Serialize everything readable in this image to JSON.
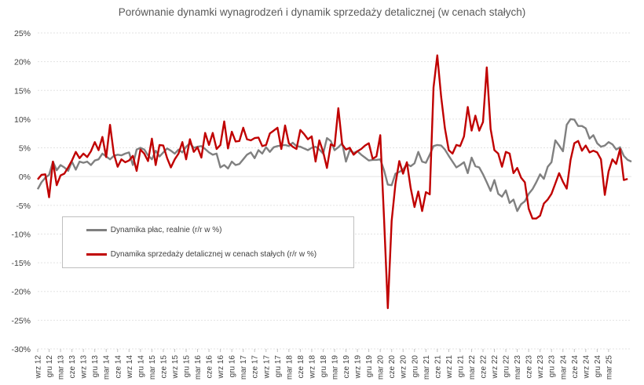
{
  "chart_data": {
    "type": "line",
    "title": "Porównanie dynamki wynagrodzeń i dynamik sprzedaży detalicznej (w cenach stałych)",
    "xlabel": "",
    "ylabel": "",
    "ylim": [
      -30,
      25
    ],
    "y_ticks": [
      "25%",
      "20%",
      "15%",
      "10%",
      "5%",
      "0%",
      "-5%",
      "-10%",
      "-15%",
      "-20%",
      "-25%",
      "-30%"
    ],
    "y_tick_values": [
      25,
      20,
      15,
      10,
      5,
      0,
      -5,
      -10,
      -15,
      -20,
      -25,
      -30
    ],
    "grid": true,
    "legend_position": "lower-left",
    "start": "2012-09",
    "end": "2025-03",
    "x_tick_labels": [
      "wrz 12",
      "gru 12",
      "mar 13",
      "cze 13",
      "wrz 13",
      "gru 13",
      "mar 14",
      "cze 14",
      "wrz 14",
      "gru 14",
      "mar 15",
      "cze 15",
      "wrz 15",
      "gru 15",
      "mar 16",
      "cze 16",
      "wrz 16",
      "gru 16",
      "mar 17",
      "cze 17",
      "wrz 17",
      "gru 17",
      "mar 18",
      "cze 18",
      "wrz 18",
      "gru 18",
      "mar 19",
      "cze 19",
      "wrz 19",
      "gru 19",
      "mar 20",
      "cze 20",
      "wrz 20",
      "gru 20",
      "mar 21",
      "cze 21",
      "wrz 21",
      "gru 21",
      "mar 22",
      "cze 22",
      "wrz 22",
      "gru 22",
      "mar 23",
      "cze 23",
      "wrz 23",
      "gru 23",
      "mar 24",
      "cze 24",
      "wrz 24",
      "gru 24",
      "mar 25"
    ],
    "series": [
      {
        "name": "Dynamika płac, realnie (r/r w %)",
        "color": "#808080",
        "values": [
          -2.2,
          -1.0,
          -0.2,
          0.3,
          2.6,
          1.1,
          2.0,
          1.6,
          1.0,
          2.6,
          1.2,
          2.6,
          2.4,
          2.6,
          2.0,
          2.8,
          3.0,
          4.0,
          3.5,
          3.0,
          3.6,
          3.8,
          3.7,
          4.0,
          4.2,
          2.0,
          4.7,
          5.0,
          4.7,
          3.7,
          3.0,
          4.5,
          3.5,
          4.2,
          4.9,
          4.5,
          4.0,
          4.7,
          4.2,
          5.2,
          5.8,
          5.0,
          5.2,
          5.3,
          4.8,
          4.2,
          3.8,
          4.0,
          1.6,
          2.0,
          1.4,
          2.6,
          2.0,
          2.2,
          3.0,
          3.8,
          4.2,
          3.2,
          4.6,
          4.0,
          5.1,
          4.3,
          5.1,
          5.3,
          5.4,
          5.5,
          5.3,
          5.9,
          5.3,
          5.2,
          4.9,
          4.6,
          5.0,
          5.2,
          4.7,
          4.0,
          6.7,
          6.2,
          4.6,
          5.1,
          5.8,
          2.6,
          4.6,
          4.1,
          4.4,
          3.8,
          3.3,
          2.8,
          2.9,
          2.9,
          3.0,
          1.1,
          -1.4,
          -1.5,
          0.5,
          0.8,
          1.2,
          2.2,
          1.8,
          2.3,
          4.3,
          2.6,
          2.4,
          3.8,
          5.3,
          5.5,
          5.4,
          4.7,
          3.6,
          2.6,
          1.6,
          2.0,
          2.5,
          0.6,
          3.3,
          1.8,
          1.6,
          0.4,
          -1.0,
          -2.5,
          -0.6,
          -3.0,
          -3.5,
          -2.4,
          -4.6,
          -4.0,
          -6.0,
          -4.8,
          -4.3,
          -3.0,
          -2.2,
          -1.0,
          0.4,
          -0.4,
          1.7,
          2.5,
          6.3,
          5.4,
          4.4,
          9.0,
          10.0,
          9.9,
          8.8,
          8.8,
          8.4,
          6.6,
          7.2,
          5.8,
          5.2,
          5.4,
          6.0,
          5.6,
          4.7,
          5.1,
          3.6,
          2.9,
          2.6
        ]
      },
      {
        "name": "Dynamika sprzedaży detalicznej w cenach stałych (r/r w %)",
        "color": "#c00000",
        "values": [
          -0.5,
          0.3,
          0.4,
          -3.6,
          2.6,
          -1.5,
          0.2,
          0.5,
          1.6,
          2.8,
          4.3,
          3.2,
          4.0,
          3.4,
          4.4,
          6.0,
          4.6,
          6.9,
          3.4,
          9.0,
          4.0,
          1.7,
          3.0,
          2.5,
          2.8,
          3.6,
          1.0,
          4.7,
          4.0,
          2.7,
          6.6,
          2.0,
          5.5,
          5.4,
          3.2,
          1.6,
          3.0,
          4.0,
          6.0,
          3.0,
          6.5,
          4.3,
          5.1,
          3.3,
          7.6,
          5.5,
          7.6,
          4.8,
          5.5,
          9.6,
          4.9,
          7.8,
          6.1,
          6.2,
          8.5,
          6.5,
          6.3,
          6.7,
          6.8,
          5.3,
          5.5,
          7.5,
          8.0,
          8.5,
          4.8,
          8.9,
          5.8,
          5.2,
          4.8,
          8.1,
          7.4,
          6.5,
          7.0,
          2.6,
          6.3,
          4.3,
          1.5,
          5.6,
          5.3,
          11.9,
          5.6,
          4.7,
          5.0,
          3.8,
          4.4,
          4.8,
          5.4,
          5.8,
          3.1,
          3.5,
          7.2,
          -7.3,
          -22.9,
          -7.7,
          -1.3,
          2.7,
          0.5,
          2.5,
          -2.0,
          -5.3,
          -2.6,
          -6.0,
          -2.7,
          -3.1,
          15.5,
          21.1,
          13.9,
          8.4,
          4.6,
          4.0,
          5.5,
          5.3,
          7.0,
          12.1,
          8.0,
          10.6,
          8.0,
          9.5,
          19.0,
          8.3,
          4.6,
          4.0,
          1.7,
          4.3,
          4.0,
          0.6,
          1.5,
          -0.2,
          -1.0,
          -5.6,
          -7.3,
          -7.3,
          -6.8,
          -4.7,
          -4.0,
          -3.0,
          -1.2,
          0.6,
          -0.9,
          -2.1,
          2.9,
          5.8,
          6.2,
          4.5,
          5.4,
          4.2,
          4.5,
          4.2,
          3.0,
          -3.2,
          0.9,
          3.0,
          2.2,
          4.8,
          -0.6,
          -0.4
        ]
      }
    ]
  }
}
